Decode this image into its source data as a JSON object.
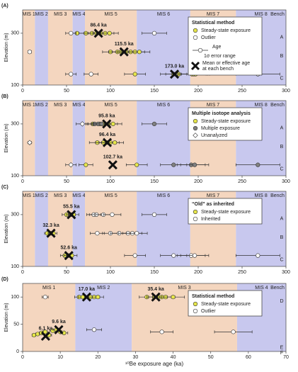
{
  "chart_data": [
    {
      "type": "scatter",
      "panel_label": "(A)",
      "ylabel": "Elevation (m)",
      "xlim": [
        0,
        300
      ],
      "xticks": [
        0,
        50,
        100,
        150,
        200,
        250,
        300
      ],
      "ylim": [
        100,
        390
      ],
      "yticks": [
        100,
        300
      ],
      "stages": [
        {
          "label": "MIS 1",
          "start": 0,
          "end": 14,
          "color": "#f4d6bf"
        },
        {
          "label": "MIS 2",
          "start": 14,
          "end": 29,
          "color": "#c8c8ee"
        },
        {
          "label": "MIS 3",
          "start": 29,
          "end": 57,
          "color": "#f4d6bf"
        },
        {
          "label": "MIS 4",
          "start": 57,
          "end": 71,
          "color": "#c8c8ee"
        },
        {
          "label": "MIS 5",
          "start": 71,
          "end": 130,
          "color": "#f4d6bf"
        },
        {
          "label": "MIS 6",
          "start": 130,
          "end": 191,
          "color": "#c8c8ee"
        },
        {
          "label": "MIS 7",
          "start": 191,
          "end": 243,
          "color": "#f4d6bf"
        },
        {
          "label": "MIS 8",
          "start": 243,
          "end": 300,
          "color": "#c8c8ee"
        }
      ],
      "bench_header": "Bench",
      "benches": [
        {
          "label": "A",
          "y": 300
        },
        {
          "label": "B",
          "y": 228
        },
        {
          "label": "C",
          "y": 142
        }
      ],
      "legend_title": "Statistical method",
      "legend": "upper right",
      "legend_notes": {
        "age": "Age",
        "error": "1σ error range",
        "mean": [
          "Mean or effective age",
          "at each bench"
        ]
      },
      "series": [
        {
          "name": "Steady-state exposure",
          "color": "#e6e64a",
          "marker": "circle",
          "x": [
            62,
            72,
            79,
            84,
            89,
            94,
            99,
            100,
            108,
            112,
            118,
            123,
            128,
            133,
            128,
            172,
            178,
            193,
            195,
            197
          ],
          "y": [
            300,
            300,
            300,
            300,
            300,
            300,
            300,
            228,
            228,
            228,
            228,
            228,
            228,
            228,
            142,
            142,
            142,
            142,
            142,
            142
          ],
          "err": [
            8,
            8,
            9,
            9,
            9,
            10,
            10,
            9,
            10,
            10,
            10,
            11,
            11,
            12,
            12,
            15,
            15,
            16,
            16,
            16
          ]
        },
        {
          "name": "Outlier",
          "color": "#ffffff",
          "marker": "circle",
          "x": [
            55,
            150,
            8,
            55,
            78,
            268
          ],
          "y": [
            300,
            300,
            228,
            142,
            142,
            142
          ],
          "err": [
            6,
            14,
            2,
            6,
            8,
            25
          ]
        }
      ],
      "means": {
        "x": [
          86.4,
          115.5,
          173.0
        ],
        "y": [
          300,
          228,
          142
        ],
        "value_labels": [
          "86.4 ka",
          "115.5 ka",
          "173.0 ka"
        ]
      }
    },
    {
      "type": "scatter",
      "panel_label": "(B)",
      "ylabel": "Elevation (m)",
      "xlim": [
        0,
        300
      ],
      "xticks": [
        0,
        50,
        100,
        150,
        200,
        250,
        300
      ],
      "ylim": [
        100,
        390
      ],
      "yticks": [
        100,
        300
      ],
      "stages": [
        {
          "label": "MIS 1",
          "start": 0,
          "end": 14,
          "color": "#f4d6bf"
        },
        {
          "label": "MIS 2",
          "start": 14,
          "end": 29,
          "color": "#c8c8ee"
        },
        {
          "label": "MIS 3",
          "start": 29,
          "end": 57,
          "color": "#f4d6bf"
        },
        {
          "label": "MIS 4",
          "start": 57,
          "end": 71,
          "color": "#c8c8ee"
        },
        {
          "label": "MIS 5",
          "start": 71,
          "end": 130,
          "color": "#f4d6bf"
        },
        {
          "label": "MIS 6",
          "start": 130,
          "end": 191,
          "color": "#c8c8ee"
        },
        {
          "label": "MIS 7",
          "start": 191,
          "end": 243,
          "color": "#f4d6bf"
        },
        {
          "label": "MIS 8",
          "start": 243,
          "end": 300,
          "color": "#c8c8ee"
        }
      ],
      "bench_header": "Bench",
      "benches": [
        {
          "label": "A",
          "y": 300
        },
        {
          "label": "B",
          "y": 228
        },
        {
          "label": "C",
          "y": 142
        }
      ],
      "legend_title": "Multiple isotope analysis",
      "legend": "upper right",
      "series": [
        {
          "name": "Steady-state exposure",
          "color": "#e6e64a",
          "marker": "circle",
          "x": [
            80,
            88,
            93,
            98,
            103,
            85,
            92,
            97,
            100,
            105,
            72,
            130
          ],
          "y": [
            300,
            300,
            300,
            300,
            300,
            228,
            228,
            228,
            228,
            228,
            142,
            142
          ],
          "err": [
            8,
            9,
            9,
            10,
            10,
            9,
            9,
            10,
            10,
            10,
            8,
            12
          ]
        },
        {
          "name": "Multiple exposure",
          "color": "#808080",
          "marker": "circle",
          "x": [
            82,
            86,
            90,
            150,
            172,
            192,
            196,
            268
          ],
          "y": [
            300,
            300,
            300,
            300,
            142,
            142,
            142,
            142
          ],
          "err": [
            8,
            8,
            9,
            14,
            15,
            16,
            16,
            25
          ]
        },
        {
          "name": "Unanalyzed",
          "color": "#ffffff",
          "marker": "diamond",
          "x": [
            68,
            8,
            55
          ],
          "y": [
            300,
            228,
            142
          ],
          "err": [
            7,
            2,
            6
          ]
        }
      ],
      "means": {
        "x": [
          95.8,
          96.4,
          102.7
        ],
        "y": [
          300,
          228,
          142
        ],
        "value_labels": [
          "95.8 ka",
          "96.4 ka",
          "102.7 ka"
        ]
      }
    },
    {
      "type": "scatter",
      "panel_label": "(C)",
      "ylabel": "Elevation (m)",
      "xlim": [
        0,
        300
      ],
      "xticks": [
        0,
        50,
        100,
        150,
        200,
        250,
        300
      ],
      "ylim": [
        100,
        390
      ],
      "yticks": [
        100,
        300
      ],
      "stages": [
        {
          "label": "MIS 1",
          "start": 0,
          "end": 14,
          "color": "#f4d6bf"
        },
        {
          "label": "MIS 2",
          "start": 14,
          "end": 29,
          "color": "#c8c8ee"
        },
        {
          "label": "MIS 3",
          "start": 29,
          "end": 57,
          "color": "#f4d6bf"
        },
        {
          "label": "MIS 4",
          "start": 57,
          "end": 71,
          "color": "#c8c8ee"
        },
        {
          "label": "MIS 5",
          "start": 71,
          "end": 130,
          "color": "#f4d6bf"
        },
        {
          "label": "MIS 6",
          "start": 130,
          "end": 191,
          "color": "#c8c8ee"
        },
        {
          "label": "MIS 7",
          "start": 191,
          "end": 243,
          "color": "#f4d6bf"
        },
        {
          "label": "MIS 8",
          "start": 243,
          "end": 300,
          "color": "#c8c8ee"
        }
      ],
      "bench_header": "Bench",
      "benches": [
        {
          "label": "A",
          "y": 300
        },
        {
          "label": "B",
          "y": 228
        },
        {
          "label": "C",
          "y": 142
        }
      ],
      "legend_title": "“Old” as inherited",
      "legend": "upper right",
      "series": [
        {
          "name": "Steady-state exposure",
          "color": "#e6e64a",
          "marker": "circle",
          "x": [
            50,
            55,
            58,
            28,
            32,
            35,
            48,
            52,
            56
          ],
          "y": [
            300,
            300,
            300,
            228,
            228,
            228,
            142,
            142,
            142
          ],
          "err": [
            5,
            5,
            6,
            3,
            3,
            4,
            5,
            5,
            6
          ]
        },
        {
          "name": "Inherited",
          "color": "#ffffff",
          "marker": "circle",
          "x": [
            81,
            84,
            92,
            102,
            150,
            85,
            100,
            110,
            120,
            125,
            130,
            128,
            172,
            192,
            196,
            268
          ],
          "y": [
            300,
            300,
            300,
            300,
            300,
            228,
            228,
            228,
            228,
            228,
            228,
            142,
            142,
            142,
            142,
            142
          ],
          "err": [
            8,
            8,
            9,
            10,
            14,
            8,
            9,
            10,
            11,
            11,
            12,
            12,
            15,
            16,
            16,
            25
          ]
        }
      ],
      "means": {
        "x": [
          55.5,
          32.3,
          52.6
        ],
        "y": [
          300,
          228,
          142
        ],
        "value_labels": [
          "55.5 ka",
          "32.3 ka",
          "52.6 ka"
        ]
      }
    },
    {
      "type": "scatter",
      "panel_label": "(D)",
      "ylabel": "Elevation (m)",
      "xlabel": "¹⁰Be exposure age (ka)",
      "xlim": [
        0,
        70
      ],
      "xticks": [
        0,
        10,
        20,
        30,
        40,
        50,
        60,
        70
      ],
      "ylim": [
        0,
        125
      ],
      "yticks": [
        0,
        50,
        100
      ],
      "stages": [
        {
          "label": "MIS 1",
          "start": 0,
          "end": 14,
          "color": "#f4d6bf"
        },
        {
          "label": "MIS 2",
          "start": 14,
          "end": 29,
          "color": "#c8c8ee"
        },
        {
          "label": "MIS 3",
          "start": 29,
          "end": 57,
          "color": "#f4d6bf"
        },
        {
          "label": "MIS 4",
          "start": 57,
          "end": 70,
          "color": "#c8c8ee"
        }
      ],
      "bench_header": "Bench",
      "benches": [
        {
          "label": "D",
          "y": 100
        },
        {
          "label": "E",
          "y": 15
        },
        {
          "label": "F",
          "y": 5
        }
      ],
      "legend_title": "Statistical method",
      "legend": "upper right",
      "series": [
        {
          "name": "Steady-state exposure",
          "color": "#e6e64a",
          "marker": "circle",
          "x": [
            15,
            16,
            18,
            19,
            20,
            33,
            35,
            36,
            37,
            38,
            40,
            3,
            4,
            5,
            6,
            7,
            8,
            9,
            10,
            11
          ],
          "y": [
            100,
            100,
            100,
            100,
            100,
            100,
            100,
            100,
            100,
            100,
            100,
            30,
            32,
            34,
            36,
            30,
            38,
            40,
            36,
            34
          ],
          "err": [
            1.2,
            1.2,
            1.5,
            1.5,
            1.5,
            2,
            2,
            2.5,
            2.5,
            2.5,
            3,
            0.5,
            0.5,
            0.6,
            0.6,
            0.7,
            0.8,
            0.9,
            1,
            1
          ]
        },
        {
          "name": "Outlier",
          "color": "#ffffff",
          "marker": "circle",
          "x": [
            6,
            19,
            37,
            56
          ],
          "y": [
            100,
            40,
            36,
            36
          ],
          "err": [
            0.8,
            2,
            3,
            5
          ]
        }
      ],
      "means": {
        "x": [
          17.0,
          35.4,
          9.6,
          6.1
        ],
        "y": [
          100,
          100,
          40,
          28
        ],
        "value_labels": [
          "17.0 ka",
          "35.4 ka",
          "9.6 ka",
          "6.1 ka"
        ]
      }
    }
  ]
}
